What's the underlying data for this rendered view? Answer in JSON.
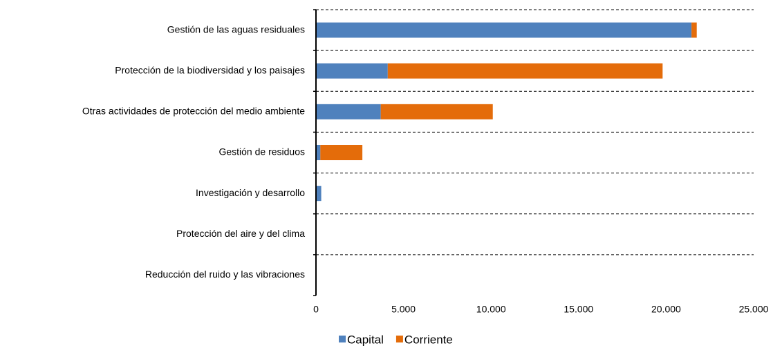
{
  "chart_data": {
    "type": "stacked_barh",
    "categories": [
      "Gestión de las aguas residuales",
      "Protección de la biodiversidad y los paisajes",
      "Otras actividades de protección del medio ambiente",
      "Gestión de residuos",
      "Investigación y desarrollo",
      "Protección del aire y del clima",
      "Reducción del ruido y las vibraciones"
    ],
    "series": [
      {
        "name": "Capital",
        "color": "#4f81bd",
        "values": [
          21450,
          4100,
          3700,
          250,
          300,
          0,
          0
        ]
      },
      {
        "name": "Corriente",
        "color": "#e46c0a",
        "values": [
          300,
          15700,
          6400,
          2400,
          0,
          0,
          0
        ]
      }
    ],
    "xlim": [
      0,
      25000
    ],
    "xticks": [
      0,
      {
        "value": 5000,
        "label": "5.000"
      },
      {
        "value": 10000,
        "label": "10.000"
      },
      {
        "value": 15000,
        "label": "15.000"
      },
      {
        "value": 20000,
        "label": "20.000"
      },
      {
        "value": 25000,
        "label": "25.000"
      }
    ],
    "legend": "bottom"
  }
}
